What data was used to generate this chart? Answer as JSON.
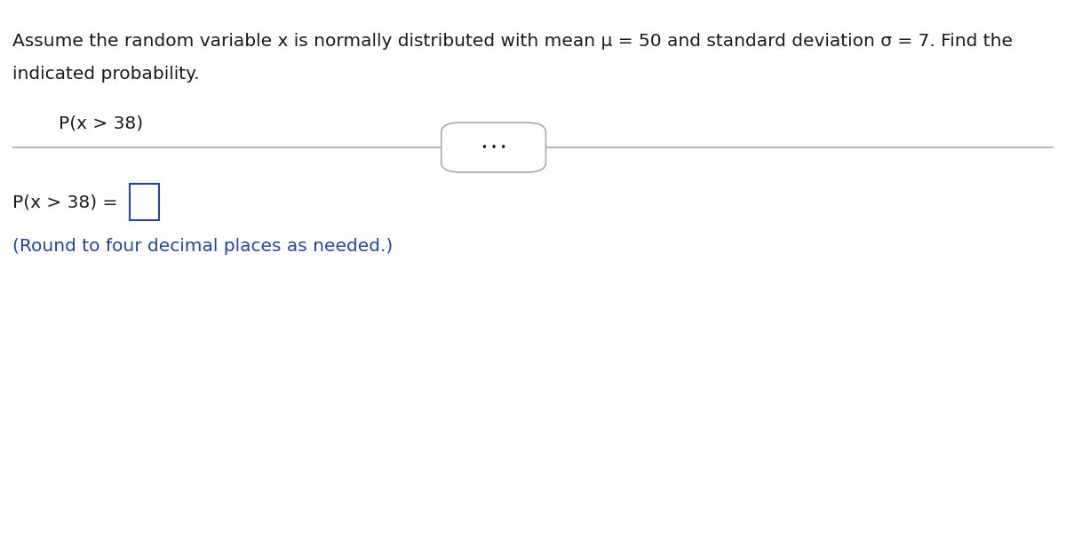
{
  "background_color": "#ffffff",
  "title_line1": "Assume the random variable x is normally distributed with mean μ = 50 and standard deviation σ = 7. Find the",
  "title_line2": "indicated probability.",
  "problem_text": "P(x > 38)",
  "answer_label": "P(x > 38) = ",
  "answer_note": "(Round to four decimal places as needed.)",
  "divider_color": "#aaaaaa",
  "dots_text": "• • •",
  "text_color": "#1a1a1a",
  "blue_color": "#2244aa",
  "title_fontsize": 14.5,
  "problem_fontsize": 14.5,
  "answer_fontsize": 14.5,
  "note_fontsize": 14.5,
  "fig_width": 12.0,
  "fig_height": 6.15,
  "dpi": 100
}
